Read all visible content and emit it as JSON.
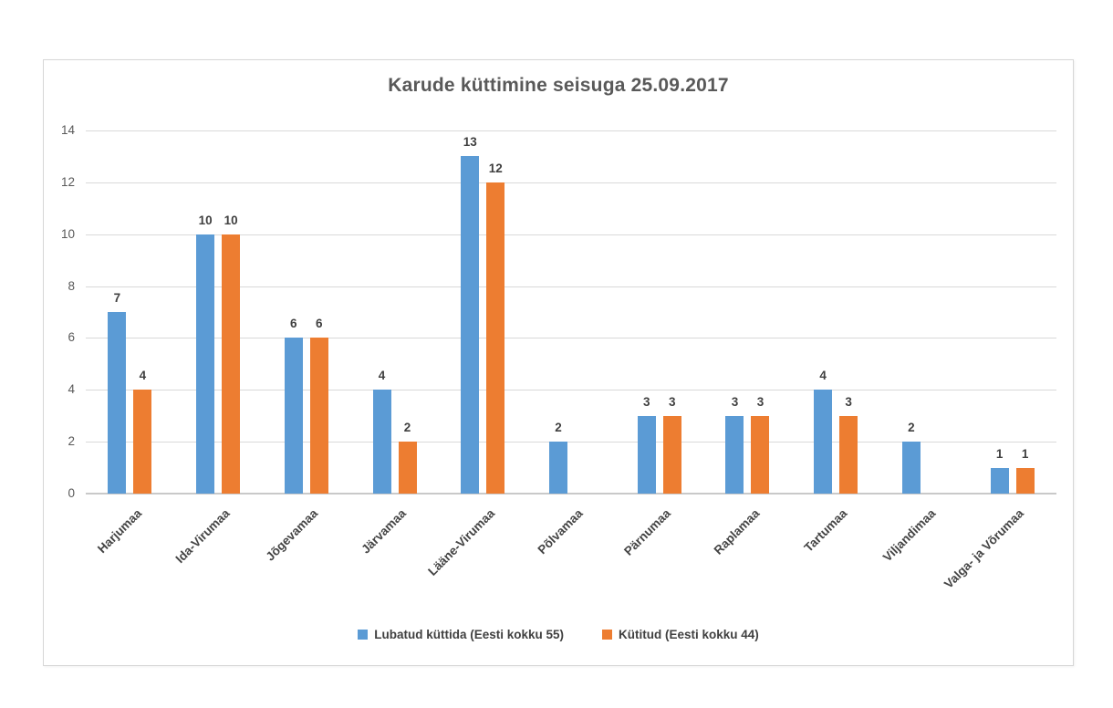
{
  "chart_data": {
    "type": "bar",
    "title": "Karude küttimine seisuga 25.09.2017",
    "categories": [
      "Harjumaa",
      "Ida-Virumaa",
      "Jõgevamaa",
      "Järvamaa",
      "Lääne-Virumaa",
      "Põlvamaa",
      "Pärnumaa",
      "Raplamaa",
      "Tartumaa",
      "Viljandimaa",
      "Valga- ja Võrumaa"
    ],
    "series": [
      {
        "name": "Lubatud küttida (Eesti kokku 55)",
        "color": "#5B9BD5",
        "values": [
          7,
          10,
          6,
          4,
          13,
          2,
          3,
          3,
          4,
          2,
          1
        ]
      },
      {
        "name": "Kütitud (Eesti kokku 44)",
        "color": "#ED7D31",
        "values": [
          4,
          10,
          6,
          2,
          12,
          0,
          3,
          3,
          3,
          0,
          1
        ]
      }
    ],
    "xlabel": "",
    "ylabel": "",
    "ylim": [
      0,
      14
    ],
    "yticks": [
      0,
      2,
      4,
      6,
      8,
      10,
      12,
      14
    ],
    "grid": true,
    "data_labels": true,
    "zero_values_hidden": true,
    "legend_position": "bottom",
    "colors": {
      "title_text": "#595959",
      "axis_text": "#595959",
      "label_text": "#404040",
      "gridline": "#d9d9d9",
      "axis_line": "#c9c9c9",
      "border": "#d7d7d7",
      "background": "#ffffff"
    }
  }
}
